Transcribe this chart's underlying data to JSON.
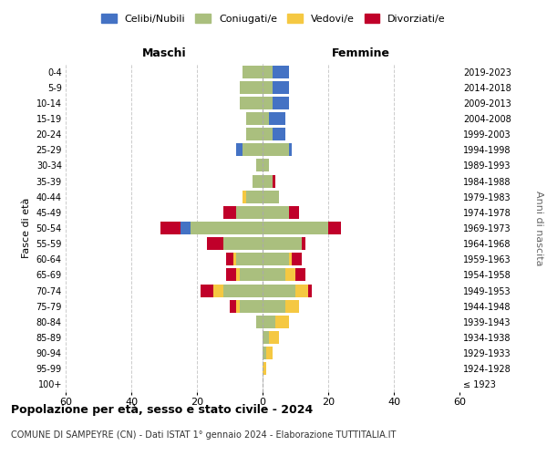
{
  "age_groups": [
    "100+",
    "95-99",
    "90-94",
    "85-89",
    "80-84",
    "75-79",
    "70-74",
    "65-69",
    "60-64",
    "55-59",
    "50-54",
    "45-49",
    "40-44",
    "35-39",
    "30-34",
    "25-29",
    "20-24",
    "15-19",
    "10-14",
    "5-9",
    "0-4"
  ],
  "years_right": [
    "≤ 1923",
    "1924-1928",
    "1929-1933",
    "1934-1938",
    "1939-1943",
    "1944-1948",
    "1949-1953",
    "1954-1958",
    "1959-1963",
    "1964-1968",
    "1969-1973",
    "1974-1978",
    "1979-1983",
    "1984-1988",
    "1989-1993",
    "1994-1998",
    "1999-2003",
    "2004-2008",
    "2009-2013",
    "2014-2018",
    "2019-2023"
  ],
  "male": {
    "celibi": [
      0,
      0,
      0,
      0,
      0,
      0,
      0,
      0,
      0,
      0,
      3,
      0,
      0,
      0,
      0,
      2,
      0,
      0,
      0,
      0,
      0
    ],
    "coniugati": [
      0,
      0,
      0,
      0,
      2,
      7,
      12,
      7,
      8,
      12,
      22,
      8,
      5,
      3,
      2,
      6,
      5,
      5,
      7,
      7,
      6
    ],
    "vedovi": [
      0,
      0,
      0,
      0,
      0,
      1,
      3,
      1,
      1,
      0,
      0,
      0,
      1,
      0,
      0,
      0,
      0,
      0,
      0,
      0,
      0
    ],
    "divorziati": [
      0,
      0,
      0,
      0,
      0,
      2,
      4,
      3,
      2,
      5,
      6,
      4,
      0,
      0,
      0,
      0,
      0,
      0,
      0,
      0,
      0
    ]
  },
  "female": {
    "nubili": [
      0,
      0,
      0,
      0,
      0,
      0,
      0,
      0,
      0,
      0,
      0,
      0,
      0,
      0,
      0,
      1,
      4,
      5,
      5,
      5,
      5
    ],
    "coniugate": [
      0,
      0,
      1,
      2,
      4,
      7,
      10,
      7,
      8,
      12,
      20,
      8,
      5,
      3,
      2,
      8,
      3,
      2,
      3,
      3,
      3
    ],
    "vedove": [
      0,
      1,
      2,
      3,
      4,
      4,
      4,
      3,
      1,
      0,
      0,
      0,
      0,
      0,
      0,
      0,
      0,
      0,
      0,
      0,
      0
    ],
    "divorziate": [
      0,
      0,
      0,
      0,
      0,
      0,
      1,
      3,
      3,
      1,
      4,
      3,
      0,
      1,
      0,
      0,
      0,
      0,
      0,
      0,
      0
    ]
  },
  "colors": {
    "celibi": "#4472C4",
    "coniugati": "#AABF7E",
    "vedovi": "#F5C842",
    "divorziati": "#C0002A"
  },
  "xlim": 60,
  "title": "Popolazione per età, sesso e stato civile - 2024",
  "subtitle": "COMUNE DI SAMPEYRE (CN) - Dati ISTAT 1° gennaio 2024 - Elaborazione TUTTITALIA.IT",
  "ylabel": "Fasce di età",
  "ylabel_right": "Anni di nascita",
  "legend_labels": [
    "Celibi/Nubili",
    "Coniugati/e",
    "Vedovi/e",
    "Divorziati/e"
  ],
  "maschi_label": "Maschi",
  "femmine_label": "Femmine"
}
